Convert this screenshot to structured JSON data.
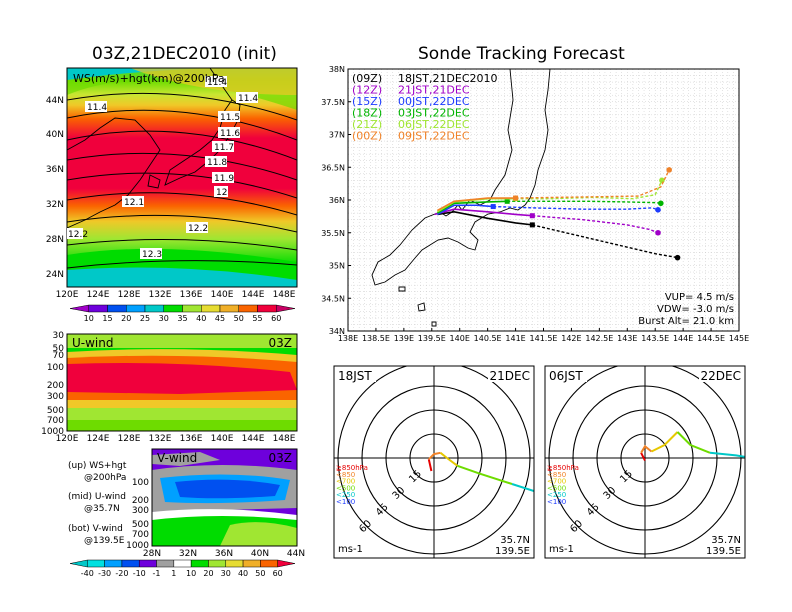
{
  "left": {
    "init_title": "03Z,21DEC2010 (init)",
    "map_label": "WS(m/s)+hgt(km)@200hPa",
    "map_lat_ticks": [
      "44N",
      "40N",
      "36N",
      "32N",
      "28N",
      "24N"
    ],
    "map_lon_ticks": [
      "120E",
      "124E",
      "128E",
      "132E",
      "136E",
      "140E",
      "144E",
      "148E"
    ],
    "contour_labels": [
      "11.4",
      "11.4",
      "11.5",
      "11.6",
      "11.7",
      "11.8",
      "11.9",
      "12",
      "12.1",
      "12.2",
      "12.3",
      "12.2",
      "11.4"
    ],
    "colorbar1": {
      "values": [
        "10",
        "15",
        "20",
        "25",
        "30",
        "35",
        "40",
        "45",
        "50",
        "55",
        "60"
      ],
      "colors": [
        "#a000c8",
        "#6e00dc",
        "#0050f0",
        "#00a0ff",
        "#00c8c8",
        "#00dc00",
        "#a0e632",
        "#e6dc32",
        "#f0af28",
        "#fa6400",
        "#f0003c",
        "#c80064"
      ]
    },
    "uwind": {
      "label": "U-wind",
      "time": "03Z",
      "pressure_ticks": [
        "30",
        "50",
        "70",
        "100",
        "200",
        "300",
        "500",
        "700",
        "1000"
      ],
      "lon_ticks": [
        "120E",
        "124E",
        "128E",
        "132E",
        "136E",
        "140E",
        "144E",
        "148E"
      ]
    },
    "vwind": {
      "label": "V-wind",
      "time": "03Z",
      "pressure_ticks": [
        "100",
        "200",
        "300",
        "500",
        "700",
        "1000"
      ],
      "lat_ticks": [
        "28N",
        "32N",
        "36N",
        "40N",
        "44N"
      ]
    },
    "legend_text": {
      "up": "(up) WS+hgt",
      "up2": "@200hPa",
      "mid": "(mid) U-wind",
      "mid2": "@35.7N",
      "bot": "(bot) V-wind",
      "bot2": "@139.5E"
    },
    "colorbar2": {
      "values": [
        "-40",
        "-30",
        "-20",
        "-10",
        "-1",
        "1",
        "10",
        "20",
        "30",
        "40",
        "50",
        "60"
      ],
      "colors": [
        "#00c8c8",
        "#00e0e0",
        "#00a0ff",
        "#0050f0",
        "#6e00dc",
        "#a0a0a0",
        "#ffffff",
        "#00dc00",
        "#a0e632",
        "#e6dc32",
        "#f0af28",
        "#fa6400",
        "#f0003c"
      ]
    }
  },
  "main": {
    "title": "Sonde Tracking Forecast",
    "launches": [
      {
        "code": "(09Z)",
        "jst": "18JST,21DEC2010",
        "color": "#000000"
      },
      {
        "code": "(12Z)",
        "jst": "21JST,21DEC",
        "color": "#a000c8"
      },
      {
        "code": "(15Z)",
        "jst": "00JST,22DEC",
        "color": "#1e3cff"
      },
      {
        "code": "(18Z)",
        "jst": "03JST,22DEC",
        "color": "#00b400"
      },
      {
        "code": "(21Z)",
        "jst": "06JST,22DEC",
        "color": "#a0e632"
      },
      {
        "code": "(00Z)",
        "jst": "09JST,22DEC",
        "color": "#f08228"
      }
    ],
    "params": {
      "vup": "VUP= 4.5 m/s",
      "vdw": "VDW= -3.0 m/s",
      "burst": "Burst Alt= 21.0 km"
    }
  },
  "chart_data": {
    "type": "line",
    "title": "Sonde Tracking Forecast",
    "xlabel": "",
    "ylabel": "",
    "xlim": [
      138,
      145
    ],
    "ylim": [
      34,
      38
    ],
    "x_ticks": [
      "138E",
      "138.5E",
      "139E",
      "139.5E",
      "140E",
      "140.5E",
      "141E",
      "141.5E",
      "142E",
      "142.5E",
      "143E",
      "143.5E",
      "144E",
      "144.5E",
      "145E"
    ],
    "y_ticks": [
      "34N",
      "34.5N",
      "35N",
      "35.5N",
      "36N",
      "36.5N",
      "37N",
      "37.5N",
      "38N"
    ],
    "grid": true,
    "series": [
      {
        "name": "(09Z) 18JST,21DEC2010",
        "color": "#000000",
        "burst": [
          141.3,
          35.62
        ],
        "x": [
          139.6,
          139.9,
          140.5,
          141.0,
          141.3,
          142.0,
          142.8,
          143.5,
          143.9
        ],
        "y": [
          35.78,
          35.82,
          35.72,
          35.65,
          35.62,
          35.48,
          35.32,
          35.18,
          35.12
        ]
      },
      {
        "name": "(12Z) 21JST,21DEC",
        "color": "#a000c8",
        "burst": [
          141.3,
          35.76
        ],
        "x": [
          139.55,
          139.9,
          140.5,
          141.0,
          141.3,
          142.2,
          143.0,
          143.4,
          143.55
        ],
        "y": [
          35.78,
          35.86,
          35.82,
          35.78,
          35.76,
          35.7,
          35.62,
          35.55,
          35.5
        ]
      },
      {
        "name": "(15Z) 00JST,22DEC",
        "color": "#1e3cff",
        "burst": [
          140.6,
          35.9
        ],
        "x": [
          139.6,
          139.9,
          140.3,
          140.6,
          141.3,
          142.2,
          143.0,
          143.45,
          143.55
        ],
        "y": [
          35.78,
          35.92,
          35.92,
          35.9,
          35.88,
          35.86,
          35.86,
          35.88,
          35.85
        ]
      },
      {
        "name": "(18Z) 03JST,22DEC",
        "color": "#00b400",
        "burst": [
          140.85,
          35.98
        ],
        "x": [
          139.6,
          139.9,
          140.5,
          140.85,
          141.5,
          142.3,
          143.0,
          143.5,
          143.6
        ],
        "y": [
          35.8,
          35.95,
          35.97,
          35.98,
          35.98,
          35.98,
          35.97,
          35.96,
          35.95
        ]
      },
      {
        "name": "(21Z) 06JST,22DEC",
        "color": "#a0e632",
        "burst": [
          141.0,
          36.02
        ],
        "x": [
          139.6,
          139.9,
          140.5,
          141.0,
          141.6,
          142.4,
          143.1,
          143.5,
          143.62
        ],
        "y": [
          35.82,
          35.97,
          36.02,
          36.02,
          36.02,
          36.04,
          36.02,
          36.08,
          36.3
        ]
      },
      {
        "name": "(00Z) 09JST,22DEC",
        "color": "#f08228",
        "burst": [
          141.0,
          36.03
        ],
        "x": [
          139.6,
          139.9,
          140.5,
          141.0,
          141.7,
          142.5,
          143.2,
          143.6,
          143.75
        ],
        "y": [
          35.84,
          35.98,
          36.03,
          36.03,
          36.04,
          36.05,
          36.06,
          36.2,
          36.46
        ]
      }
    ]
  },
  "polar": [
    {
      "time": "18JST",
      "date": "21DEC",
      "lat": "35.7N",
      "lon": "139.5E",
      "unit": "ms-1",
      "ring_labels": [
        "15",
        "30",
        "45",
        "60"
      ],
      "levels": [
        {
          "label": "≧850hPa",
          "color": "#e60000"
        },
        {
          "label": "<850",
          "color": "#f08228"
        },
        {
          "label": "<700",
          "color": "#e6c800"
        },
        {
          "label": "<500",
          "color": "#6edc00"
        },
        {
          "label": "<250",
          "color": "#00c8c8"
        },
        {
          "label": "<100",
          "color": "#1e3cff"
        }
      ],
      "hodo": [
        [
          -2,
          -10
        ],
        [
          -4,
          -1
        ],
        [
          0,
          3
        ],
        [
          5,
          4
        ],
        [
          10,
          0
        ],
        [
          18,
          -6
        ],
        [
          35,
          -12
        ],
        [
          60,
          -20
        ],
        [
          85,
          -28
        ],
        [
          100,
          -40
        ]
      ],
      "hodo_split": [
        1,
        3,
        5,
        7
      ]
    },
    {
      "time": "06JST",
      "date": "22DEC",
      "lat": "35.7N",
      "lon": "139.5E",
      "unit": "ms-1",
      "ring_labels": [
        "15",
        "30",
        "45",
        "60"
      ],
      "levels": [
        {
          "label": "≧850hPa",
          "color": "#e60000"
        },
        {
          "label": "<850",
          "color": "#f08228"
        },
        {
          "label": "<700",
          "color": "#e6c800"
        },
        {
          "label": "<500",
          "color": "#6edc00"
        },
        {
          "label": "<250",
          "color": "#00c8c8"
        },
        {
          "label": "<100",
          "color": "#1e3cff"
        }
      ],
      "hodo": [
        [
          0,
          -2
        ],
        [
          -3,
          4
        ],
        [
          0,
          9
        ],
        [
          5,
          5
        ],
        [
          15,
          10
        ],
        [
          25,
          20
        ],
        [
          35,
          10
        ],
        [
          50,
          4
        ],
        [
          70,
          2
        ],
        [
          95,
          -2
        ]
      ],
      "hodo_split": [
        1,
        3,
        5,
        7
      ]
    }
  ]
}
